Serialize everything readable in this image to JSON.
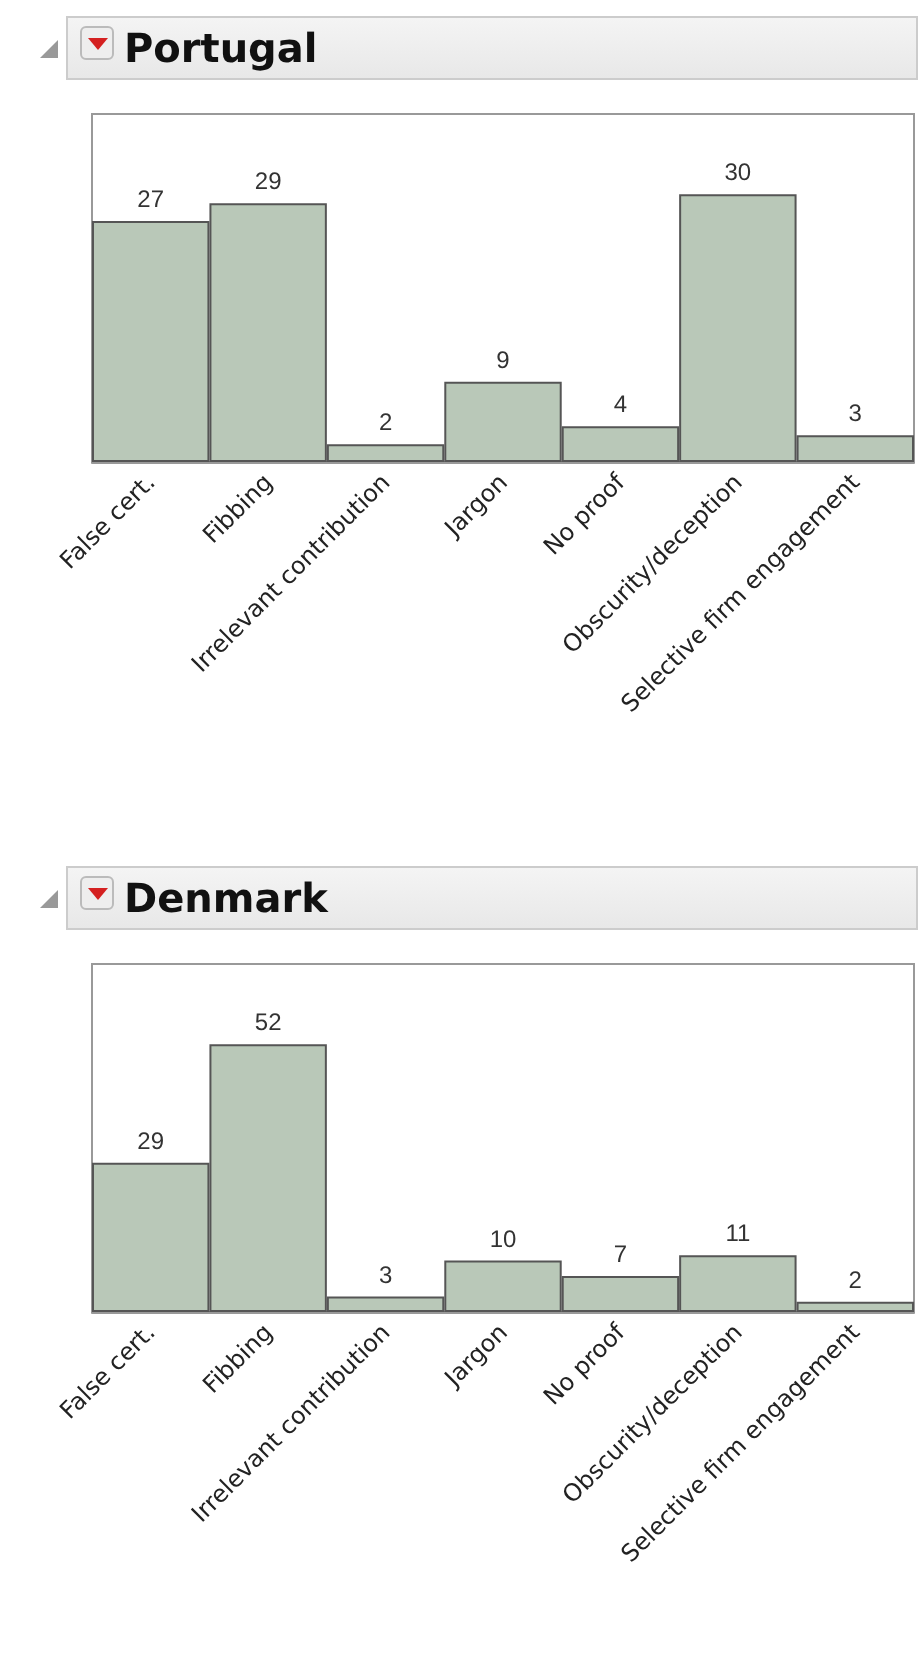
{
  "chart_data": [
    {
      "type": "bar",
      "title": "Portugal",
      "categories": [
        "False cert.",
        "Fibbing",
        "Irrelevant contribution",
        "Jargon",
        "No proof",
        "Obscurity/deception",
        "Selective firm engagement"
      ],
      "values": [
        27,
        29,
        2,
        9,
        4,
        30,
        3
      ],
      "color": "#b9c8b8",
      "data_labels": true
    },
    {
      "type": "bar",
      "title": "Denmark",
      "categories": [
        "False cert.",
        "Fibbing",
        "Irrelevant contribution",
        "Jargon",
        "No proof",
        "Obscurity/deception",
        "Selective firm engagement"
      ],
      "values": [
        29,
        52,
        3,
        10,
        7,
        11,
        2
      ],
      "color": "#b9c8b8",
      "data_labels": true
    }
  ]
}
